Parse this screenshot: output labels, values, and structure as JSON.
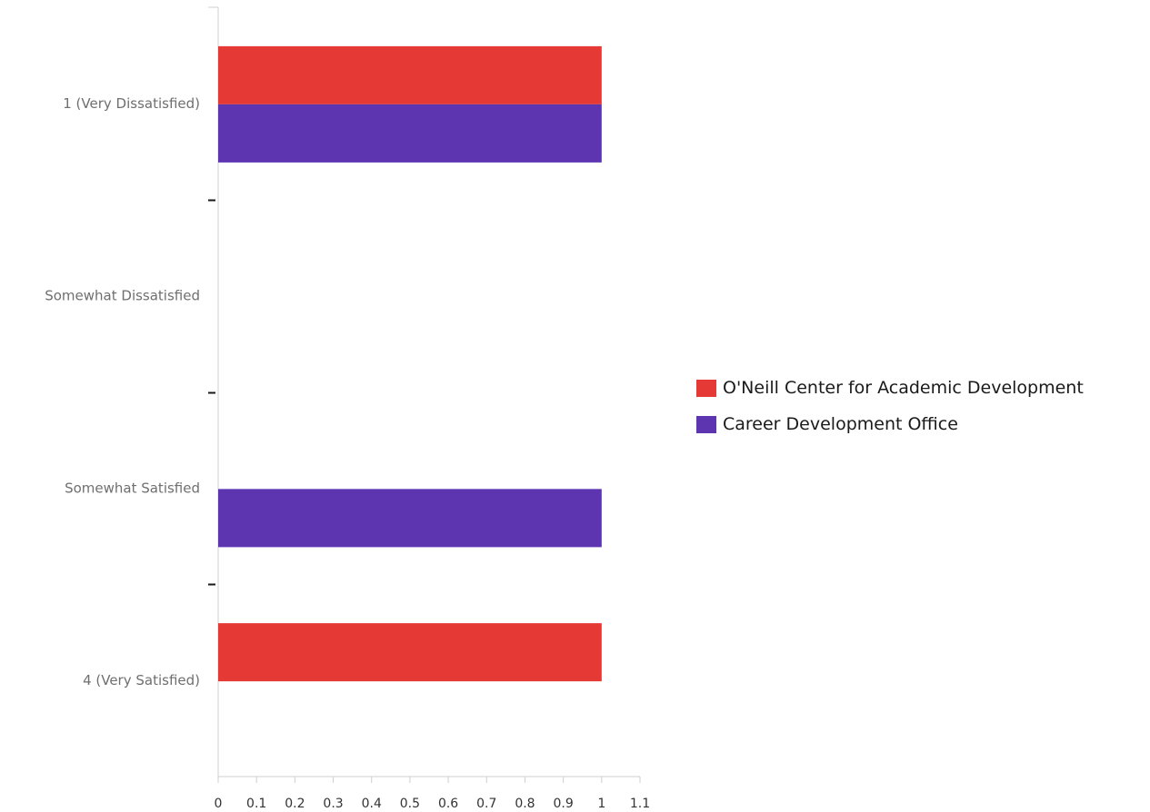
{
  "chart_data": {
    "type": "bar",
    "orientation": "horizontal",
    "title": "",
    "xlabel": "",
    "ylabel": "",
    "categories": [
      "1 (Very Dissatisfied)",
      "Somewhat Dissatisfied",
      "Somewhat Satisfied",
      "4 (Very Satisfied)"
    ],
    "series": [
      {
        "name": "O'Neill Center for Academic Development",
        "color": "#e53935",
        "values": [
          1,
          0,
          0,
          1
        ]
      },
      {
        "name": "Career Development Office",
        "color": "#5e35b1",
        "values": [
          1,
          0,
          1,
          0
        ]
      }
    ],
    "xlim": [
      0,
      1.1
    ],
    "xticks": [
      "0",
      "0.1",
      "0.2",
      "0.3",
      "0.4",
      "0.5",
      "0.6",
      "0.7",
      "0.8",
      "0.9",
      "1",
      "1.1"
    ],
    "grid": false,
    "legend_position": "right"
  }
}
